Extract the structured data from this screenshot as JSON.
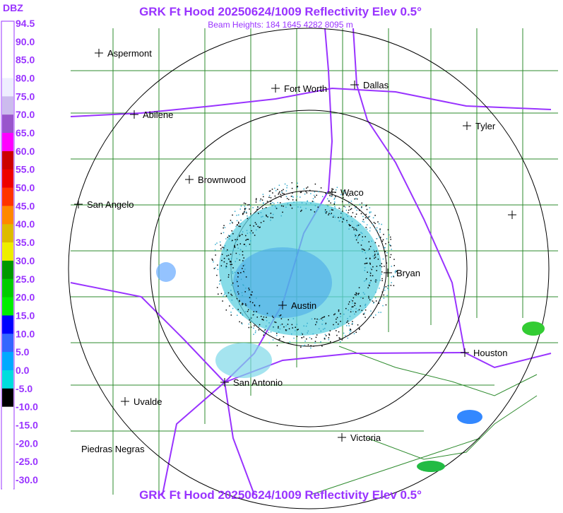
{
  "header": {
    "title": "GRK Ft Hood 20250624/1009 Reflectivity Elev 0.5°",
    "subtitle": "Beam Heights: 184 1645 4282 8095 m"
  },
  "legend": {
    "title": "DBZ",
    "labels": [
      "94.5",
      "90.0",
      "85.0",
      "80.0",
      "75.0",
      "70.0",
      "65.0",
      "60.0",
      "55.0",
      "50.0",
      "45.0",
      "40.0",
      "35.0",
      "30.0",
      "25.0",
      "20.0",
      "15.0",
      "10.0",
      "5.0",
      "0.0",
      "-5.0",
      "-10.0",
      "-15.0",
      "-20.0",
      "-25.0",
      "-30.0"
    ],
    "colors": [
      "#ffffff",
      "#ffffff",
      "#ffffff",
      "#eeeeff",
      "#ccbbee",
      "#9955cc",
      "#ff00ff",
      "#cc0000",
      "#ee0000",
      "#ff3300",
      "#ff8800",
      "#ddbb00",
      "#eeee00",
      "#009900",
      "#00cc00",
      "#00ee00",
      "#0000ff",
      "#3366ff",
      "#00aaff",
      "#00dddd",
      "#000000",
      "#ffffff",
      "#ffffff",
      "#ffffff",
      "#ffffff",
      "#ffffff"
    ]
  },
  "cities": [
    "Aspermont",
    "Fort Worth",
    "Dallas",
    "Abilene",
    "Tyler",
    "Brownwood",
    "Waco",
    "San Angelo",
    "Bryan",
    "Austin",
    "Houston",
    "San Antonio",
    "Uvalde",
    "Victoria",
    "Piedras Negras"
  ]
}
